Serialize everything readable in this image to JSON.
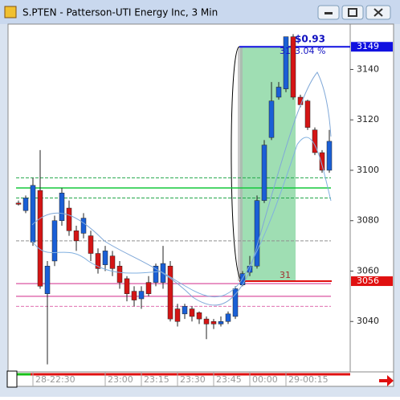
{
  "window": {
    "title": "S.PTEN - Patterson-UTI Energy Inc, 3 Min"
  },
  "chart_data": {
    "type": "candlestick",
    "open": [
      3087,
      3084,
      3071.5,
      3092,
      3051,
      3064,
      3080,
      3085,
      3076,
      3075,
      3074,
      3067,
      3062.5,
      3066,
      3062,
      3057,
      3052,
      3049,
      3055.5,
      3055.5,
      3055.5,
      3062,
      3045,
      3043,
      3045,
      3043.5,
      3041,
      3040,
      3039,
      3040,
      3042,
      3054.5,
      3059.5,
      3062,
      3088,
      3113,
      3129,
      3132.3,
      3153,
      3129,
      3127.5,
      3116,
      3107,
      3100
    ],
    "high": [
      3088,
      3090,
      3097,
      3108,
      3064,
      3082,
      3093,
      3088,
      3078,
      3083,
      3076,
      3069,
      3070,
      3068,
      3064,
      3058,
      3054,
      3054,
      3058,
      3063,
      3070,
      3064,
      3047,
      3047,
      3046,
      3044,
      3042,
      3041,
      3042,
      3044,
      3054,
      3060,
      3066,
      3090,
      3112,
      3135,
      3135,
      3153,
      3154,
      3130,
      3128,
      3117,
      3108,
      3116
    ],
    "low": [
      3086,
      3083,
      3070,
      3053,
      3023,
      3062,
      3078,
      3074,
      3068,
      3073,
      3064,
      3059,
      3060,
      3058,
      3053,
      3048,
      3046,
      3045,
      3050,
      3054,
      3053,
      3040,
      3038,
      3041,
      3040,
      3039,
      3033,
      3037,
      3038,
      3039,
      3041,
      3054,
      3058,
      3061,
      3087,
      3112,
      3128,
      3131,
      3128,
      3125,
      3116,
      3106,
      3099,
      3099
    ],
    "close": [
      3086.5,
      3089,
      3094,
      3054,
      3062,
      3080,
      3091,
      3076,
      3072,
      3081,
      3067,
      3061,
      3068,
      3061,
      3055.5,
      3051,
      3048.5,
      3052,
      3051,
      3062,
      3063,
      3041,
      3040,
      3046,
      3042,
      3041,
      3039,
      3039,
      3040,
      3043,
      3053,
      3059,
      3062,
      3088,
      3110,
      3127.5,
      3133,
      3153,
      3129,
      3126,
      3117,
      3107,
      3100,
      3111.5
    ],
    "up_color": "#1a5fd6",
    "down_color": "#d41515",
    "xticks": [
      {
        "value": 2,
        "label": "28-22:30"
      },
      {
        "value": 12,
        "label": "23:00"
      },
      {
        "value": 17,
        "label": "23:15"
      },
      {
        "value": 22,
        "label": "23:30"
      },
      {
        "value": 27,
        "label": "23:45"
      },
      {
        "value": 32,
        "label": "00:00"
      },
      {
        "value": 37,
        "label": "29-00:15"
      }
    ],
    "ylim": [
      3020,
      3158
    ],
    "yticks": [
      3040,
      3060,
      3080,
      3100,
      3120,
      3140
    ],
    "hlines": [
      {
        "value": 3097,
        "color": "#22a64a",
        "style": "dashed"
      },
      {
        "value": 3093,
        "color": "#14c83c",
        "style": "solid"
      },
      {
        "value": 3089,
        "color": "#22a64a",
        "style": "dashed"
      },
      {
        "value": 3072,
        "color": "#909090",
        "style": "dashed"
      },
      {
        "value": 3055,
        "color": "#e070b0",
        "style": "solid"
      },
      {
        "value": 3050,
        "color": "#e070b0",
        "style": "solid"
      },
      {
        "value": 3046,
        "color": "#e070b0",
        "style": "dashed"
      }
    ],
    "price_markers": [
      {
        "value": 3149,
        "color": "#1010e0"
      },
      {
        "value": 3056,
        "color": "#e01010"
      }
    ],
    "trade": {
      "start": 31,
      "end": 38,
      "entry": 3056,
      "exit": 3149,
      "entry_count": "31",
      "exit_count": "31",
      "gain": "$0.93",
      "gain_pct": "3.04 %"
    }
  }
}
